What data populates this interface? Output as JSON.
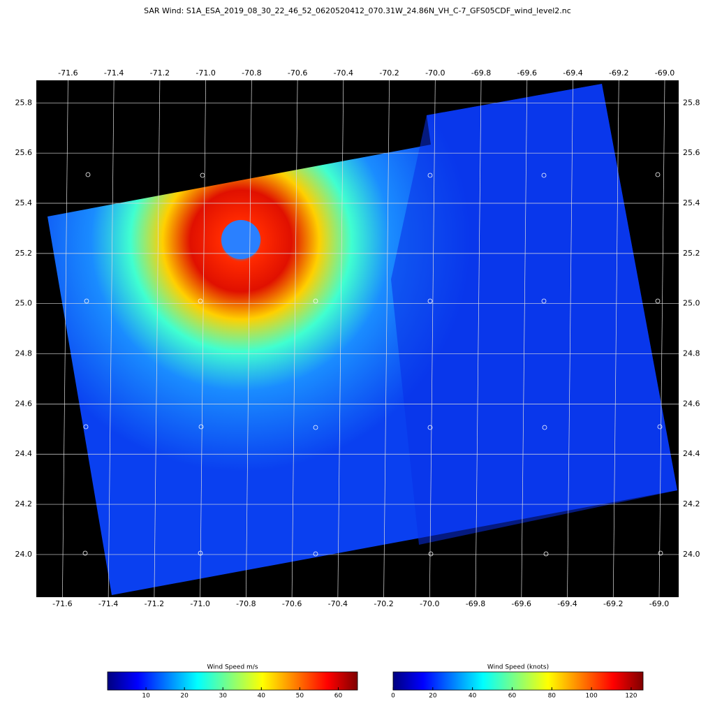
{
  "title": "SAR Wind: S1A_ESA_2019_08_30_22_46_52_0620520412_070.31W_24.86N_VH_C-7_GFS05CDF_wind_level2.nc",
  "map": {
    "xlim": [
      -71.726,
      -68.927
    ],
    "ylim": [
      23.83,
      25.89
    ],
    "xticks": [
      -71.6,
      -71.4,
      -71.2,
      {
        "value": -71,
        "label": "-71.0"
      },
      -70.8,
      -70.6,
      -70.4,
      -70.2,
      {
        "value": -70,
        "label": "-70.0"
      },
      -69.8,
      -69.6,
      -69.4,
      -69.2,
      {
        "value": -69,
        "label": "-69.0"
      }
    ],
    "yticks": [
      {
        "value": 24,
        "label": "24.0"
      },
      24.2,
      24.4,
      24.6,
      24.8,
      {
        "value": 25,
        "label": "25.0"
      },
      25.2,
      25.4,
      25.6,
      25.8
    ]
  },
  "colorbars": [
    {
      "title": "Wind Speed m/s",
      "range": [
        0,
        65
      ],
      "ticks": [
        10,
        20,
        30,
        40,
        50,
        60
      ]
    },
    {
      "title": "Wind Speed (knots)",
      "range": [
        0,
        126
      ],
      "ticks": [
        0,
        20,
        40,
        60,
        80,
        100,
        120
      ]
    }
  ]
}
